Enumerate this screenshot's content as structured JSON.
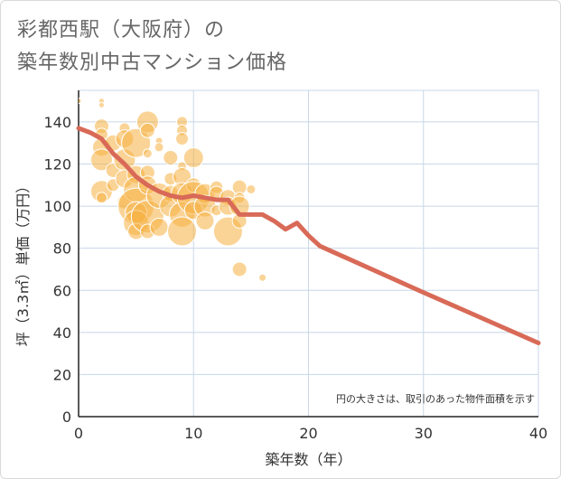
{
  "title_lines": [
    "彩都西駅（大阪府）の",
    "築年数別中古マンション価格"
  ],
  "chart_data": {
    "type": "scatter",
    "xlabel": "築年数（年）",
    "ylabel": "坪（3.3㎡）単価（万円）",
    "xlim": [
      0,
      40
    ],
    "ylim": [
      0,
      155
    ],
    "xticks": [
      0,
      10,
      20,
      30,
      40
    ],
    "yticks": [
      0,
      20,
      40,
      60,
      80,
      100,
      120,
      140
    ],
    "grid": true,
    "note": "円の大きさは、取引のあった物件面積を示す",
    "colors": {
      "bubble": "#f5b041",
      "line": "#d86a57",
      "grid": "#c8d7e8"
    },
    "series": [
      {
        "kind": "bubbles",
        "points": [
          {
            "x": 0,
            "y": 150,
            "r": 3
          },
          {
            "x": 2,
            "y": 150,
            "r": 3
          },
          {
            "x": 2,
            "y": 148,
            "r": 3
          },
          {
            "x": 2,
            "y": 138,
            "r": 8
          },
          {
            "x": 2,
            "y": 134,
            "r": 7
          },
          {
            "x": 2,
            "y": 128,
            "r": 10
          },
          {
            "x": 2,
            "y": 122,
            "r": 12
          },
          {
            "x": 2,
            "y": 107,
            "r": 12
          },
          {
            "x": 2,
            "y": 104,
            "r": 6
          },
          {
            "x": 3,
            "y": 130,
            "r": 9
          },
          {
            "x": 3,
            "y": 117,
            "r": 8
          },
          {
            "x": 3,
            "y": 110,
            "r": 7
          },
          {
            "x": 4,
            "y": 137,
            "r": 6
          },
          {
            "x": 4,
            "y": 132,
            "r": 10
          },
          {
            "x": 4,
            "y": 122,
            "r": 12
          },
          {
            "x": 4,
            "y": 113,
            "r": 10
          },
          {
            "x": 4,
            "y": 102,
            "r": 8
          },
          {
            "x": 5,
            "y": 130,
            "r": 16
          },
          {
            "x": 5,
            "y": 115,
            "r": 10
          },
          {
            "x": 5,
            "y": 108,
            "r": 14
          },
          {
            "x": 5,
            "y": 100,
            "r": 20
          },
          {
            "x": 5,
            "y": 97,
            "r": 12
          },
          {
            "x": 5,
            "y": 92,
            "r": 14
          },
          {
            "x": 5,
            "y": 88,
            "r": 9
          },
          {
            "x": 6,
            "y": 140,
            "r": 12
          },
          {
            "x": 6,
            "y": 136,
            "r": 8
          },
          {
            "x": 6,
            "y": 125,
            "r": 5
          },
          {
            "x": 6,
            "y": 116,
            "r": 8
          },
          {
            "x": 6,
            "y": 110,
            "r": 10
          },
          {
            "x": 6,
            "y": 95,
            "r": 18
          },
          {
            "x": 6,
            "y": 88,
            "r": 8
          },
          {
            "x": 7,
            "y": 131,
            "r": 4
          },
          {
            "x": 7,
            "y": 128,
            "r": 5
          },
          {
            "x": 7,
            "y": 105,
            "r": 14
          },
          {
            "x": 7,
            "y": 90,
            "r": 10
          },
          {
            "x": 8,
            "y": 123,
            "r": 8
          },
          {
            "x": 8,
            "y": 113,
            "r": 7
          },
          {
            "x": 8,
            "y": 106,
            "r": 9
          },
          {
            "x": 8,
            "y": 100,
            "r": 12
          },
          {
            "x": 9,
            "y": 140,
            "r": 6
          },
          {
            "x": 9,
            "y": 136,
            "r": 6
          },
          {
            "x": 9,
            "y": 132,
            "r": 7
          },
          {
            "x": 9,
            "y": 119,
            "r": 5
          },
          {
            "x": 9,
            "y": 114,
            "r": 10
          },
          {
            "x": 9,
            "y": 106,
            "r": 12
          },
          {
            "x": 9,
            "y": 96,
            "r": 14
          },
          {
            "x": 9,
            "y": 88,
            "r": 16
          },
          {
            "x": 10,
            "y": 123,
            "r": 11
          },
          {
            "x": 10,
            "y": 110,
            "r": 8
          },
          {
            "x": 10,
            "y": 104,
            "r": 18
          },
          {
            "x": 10,
            "y": 98,
            "r": 10
          },
          {
            "x": 11,
            "y": 106,
            "r": 11
          },
          {
            "x": 11,
            "y": 100,
            "r": 12
          },
          {
            "x": 11,
            "y": 93,
            "r": 10
          },
          {
            "x": 12,
            "y": 109,
            "r": 7
          },
          {
            "x": 12,
            "y": 106,
            "r": 8
          },
          {
            "x": 12,
            "y": 98,
            "r": 6
          },
          {
            "x": 13,
            "y": 104,
            "r": 9
          },
          {
            "x": 13,
            "y": 100,
            "r": 10
          },
          {
            "x": 13,
            "y": 88,
            "r": 16
          },
          {
            "x": 14,
            "y": 109,
            "r": 8
          },
          {
            "x": 14,
            "y": 104,
            "r": 6
          },
          {
            "x": 14,
            "y": 100,
            "r": 11
          },
          {
            "x": 14,
            "y": 93,
            "r": 8
          },
          {
            "x": 14,
            "y": 70,
            "r": 8
          },
          {
            "x": 15,
            "y": 108,
            "r": 5
          },
          {
            "x": 16,
            "y": 66,
            "r": 4
          }
        ]
      },
      {
        "kind": "line",
        "points": [
          {
            "x": 0,
            "y": 137
          },
          {
            "x": 1,
            "y": 135
          },
          {
            "x": 2,
            "y": 132
          },
          {
            "x": 3,
            "y": 125
          },
          {
            "x": 4,
            "y": 120
          },
          {
            "x": 5,
            "y": 114
          },
          {
            "x": 6,
            "y": 110
          },
          {
            "x": 7,
            "y": 107
          },
          {
            "x": 8,
            "y": 105
          },
          {
            "x": 9,
            "y": 104
          },
          {
            "x": 10,
            "y": 105
          },
          {
            "x": 11,
            "y": 104
          },
          {
            "x": 12,
            "y": 103
          },
          {
            "x": 13,
            "y": 103
          },
          {
            "x": 14,
            "y": 96
          },
          {
            "x": 15,
            "y": 96
          },
          {
            "x": 16,
            "y": 96
          },
          {
            "x": 17,
            "y": 93
          },
          {
            "x": 18,
            "y": 89
          },
          {
            "x": 19,
            "y": 92
          },
          {
            "x": 20,
            "y": 86
          },
          {
            "x": 21,
            "y": 81
          },
          {
            "x": 30,
            "y": 59
          },
          {
            "x": 40,
            "y": 35
          }
        ]
      }
    ]
  }
}
